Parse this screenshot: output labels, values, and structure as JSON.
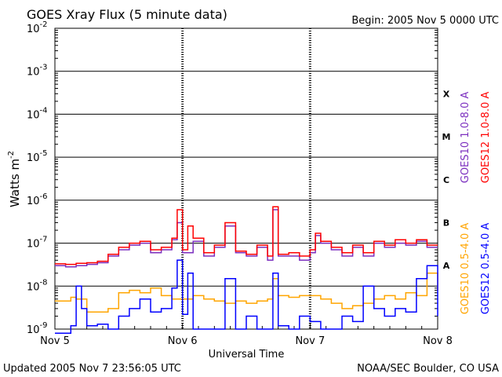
{
  "chart_data": {
    "type": "line",
    "title": "GOES Xray Flux (5 minute data)",
    "begin_label": "Begin:  2005 Nov 5 0000 UTC",
    "xlabel": "Universal Time",
    "ylabel": "Watts m",
    "ylabel_superscript": "-2",
    "yscale": "log",
    "ylim": [
      1e-09,
      0.01
    ],
    "xlim": [
      0,
      72
    ],
    "x_unit": "hours since 2005 Nov 5 0000 UTC",
    "y_ticks": [
      {
        "base": "10",
        "exp": "-2",
        "value": 0.01
      },
      {
        "base": "10",
        "exp": "-3",
        "value": 0.001
      },
      {
        "base": "10",
        "exp": "-4",
        "value": 0.0001
      },
      {
        "base": "10",
        "exp": "-5",
        "value": 1e-05
      },
      {
        "base": "10",
        "exp": "-6",
        "value": 1e-06
      },
      {
        "base": "10",
        "exp": "-7",
        "value": 1e-07
      },
      {
        "base": "10",
        "exp": "-8",
        "value": 1e-08
      },
      {
        "base": "10",
        "exp": "-9",
        "value": 1e-09
      }
    ],
    "x_ticks": [
      {
        "label": "Nov 5",
        "hour": 0
      },
      {
        "label": "Nov 6",
        "hour": 24
      },
      {
        "label": "Nov 7",
        "hour": 48
      },
      {
        "label": "Nov 8",
        "hour": 72
      }
    ],
    "flare_classes": [
      {
        "label": "X",
        "value": 0.0003
      },
      {
        "label": "M",
        "value": 3e-05
      },
      {
        "label": "C",
        "value": 3e-06
      },
      {
        "label": "B",
        "value": 3e-07
      },
      {
        "label": "A",
        "value": 3e-08
      }
    ],
    "grid": true,
    "legend_position": "right",
    "series": [
      {
        "name": "GOES10 1.0-8.0 A",
        "color": "#7b2fbf",
        "points": [
          [
            0,
            3e-08
          ],
          [
            2,
            2.8e-08
          ],
          [
            4,
            3e-08
          ],
          [
            6,
            3.2e-08
          ],
          [
            8,
            3.5e-08
          ],
          [
            10,
            5e-08
          ],
          [
            12,
            7e-08
          ],
          [
            14,
            9e-08
          ],
          [
            16,
            1e-07
          ],
          [
            18,
            6e-08
          ],
          [
            20,
            7e-08
          ],
          [
            22,
            1.2e-07
          ],
          [
            23,
            3e-07
          ],
          [
            24,
            6e-08
          ],
          [
            26,
            1.1e-07
          ],
          [
            28,
            5e-08
          ],
          [
            30,
            8e-08
          ],
          [
            32,
            2.5e-07
          ],
          [
            34,
            6e-08
          ],
          [
            36,
            5e-08
          ],
          [
            38,
            8e-08
          ],
          [
            40,
            4e-08
          ],
          [
            41,
            6e-07
          ],
          [
            42,
            5e-08
          ],
          [
            44,
            5e-08
          ],
          [
            46,
            4e-08
          ],
          [
            48,
            6e-08
          ],
          [
            49,
            1.5e-07
          ],
          [
            50,
            1e-07
          ],
          [
            52,
            7e-08
          ],
          [
            54,
            5e-08
          ],
          [
            56,
            8e-08
          ],
          [
            58,
            5e-08
          ],
          [
            60,
            1e-07
          ],
          [
            62,
            8e-08
          ],
          [
            64,
            1e-07
          ],
          [
            66,
            9e-08
          ],
          [
            68,
            1.1e-07
          ],
          [
            70,
            8e-08
          ],
          [
            72,
            8e-08
          ]
        ]
      },
      {
        "name": "GOES12 1.0-8.0 A",
        "color": "#ff0000",
        "points": [
          [
            0,
            3.3e-08
          ],
          [
            2,
            3.2e-08
          ],
          [
            4,
            3.4e-08
          ],
          [
            6,
            3.5e-08
          ],
          [
            8,
            3.8e-08
          ],
          [
            10,
            5.5e-08
          ],
          [
            12,
            8e-08
          ],
          [
            14,
            1e-07
          ],
          [
            16,
            1.1e-07
          ],
          [
            18,
            7e-08
          ],
          [
            20,
            8e-08
          ],
          [
            22,
            1.3e-07
          ],
          [
            23,
            6e-07
          ],
          [
            24,
            7e-08
          ],
          [
            25,
            2.5e-07
          ],
          [
            26,
            1.3e-07
          ],
          [
            28,
            6e-08
          ],
          [
            30,
            9e-08
          ],
          [
            32,
            3e-07
          ],
          [
            34,
            6.5e-08
          ],
          [
            36,
            5.5e-08
          ],
          [
            38,
            9e-08
          ],
          [
            40,
            5e-08
          ],
          [
            41,
            7e-07
          ],
          [
            42,
            5.5e-08
          ],
          [
            44,
            6e-08
          ],
          [
            46,
            5e-08
          ],
          [
            48,
            7e-08
          ],
          [
            49,
            1.7e-07
          ],
          [
            50,
            1.1e-07
          ],
          [
            52,
            8e-08
          ],
          [
            54,
            6e-08
          ],
          [
            56,
            9e-08
          ],
          [
            58,
            6e-08
          ],
          [
            60,
            1.1e-07
          ],
          [
            62,
            9e-08
          ],
          [
            64,
            1.2e-07
          ],
          [
            66,
            1e-07
          ],
          [
            68,
            1.2e-07
          ],
          [
            70,
            9e-08
          ],
          [
            72,
            9e-08
          ]
        ]
      },
      {
        "name": "GOES10 0.5-4.0 A",
        "color": "#ffa500",
        "points": [
          [
            0,
            4.5e-09
          ],
          [
            2,
            4.5e-09
          ],
          [
            3,
            5.5e-09
          ],
          [
            4,
            5e-09
          ],
          [
            6,
            2.5e-09
          ],
          [
            8,
            2.5e-09
          ],
          [
            10,
            3e-09
          ],
          [
            12,
            7e-09
          ],
          [
            14,
            8e-09
          ],
          [
            16,
            7e-09
          ],
          [
            18,
            9e-09
          ],
          [
            20,
            6e-09
          ],
          [
            22,
            5e-09
          ],
          [
            24,
            5e-09
          ],
          [
            26,
            6e-09
          ],
          [
            28,
            5e-09
          ],
          [
            30,
            4.5e-09
          ],
          [
            32,
            4e-09
          ],
          [
            34,
            4.5e-09
          ],
          [
            36,
            4e-09
          ],
          [
            38,
            4.5e-09
          ],
          [
            40,
            5e-09
          ],
          [
            41,
            1.5e-08
          ],
          [
            42,
            6e-09
          ],
          [
            44,
            5.5e-09
          ],
          [
            46,
            6e-09
          ],
          [
            48,
            6e-09
          ],
          [
            50,
            5e-09
          ],
          [
            52,
            4e-09
          ],
          [
            54,
            3e-09
          ],
          [
            56,
            3.5e-09
          ],
          [
            58,
            4e-09
          ],
          [
            60,
            5e-09
          ],
          [
            62,
            6e-09
          ],
          [
            64,
            5e-09
          ],
          [
            66,
            7e-09
          ],
          [
            68,
            6e-09
          ],
          [
            70,
            2e-08
          ],
          [
            72,
            8e-09
          ]
        ]
      },
      {
        "name": "GOES12 0.5-4.0 A",
        "color": "#0000ff",
        "points": [
          [
            0,
            8e-10
          ],
          [
            2,
            8e-10
          ],
          [
            3,
            1.2e-09
          ],
          [
            4,
            1e-08
          ],
          [
            5,
            3e-09
          ],
          [
            6,
            1.2e-09
          ],
          [
            8,
            1.3e-09
          ],
          [
            10,
            1e-09
          ],
          [
            12,
            2e-09
          ],
          [
            14,
            3e-09
          ],
          [
            16,
            5e-09
          ],
          [
            18,
            2.5e-09
          ],
          [
            20,
            3e-09
          ],
          [
            22,
            9e-09
          ],
          [
            23,
            4e-08
          ],
          [
            24,
            2.2e-09
          ],
          [
            25,
            2e-08
          ],
          [
            26,
            1e-09
          ],
          [
            28,
            1e-09
          ],
          [
            30,
            1e-09
          ],
          [
            32,
            1.5e-08
          ],
          [
            34,
            1e-09
          ],
          [
            36,
            2e-09
          ],
          [
            38,
            1e-09
          ],
          [
            40,
            1e-09
          ],
          [
            41,
            2e-08
          ],
          [
            42,
            1.2e-09
          ],
          [
            44,
            1e-09
          ],
          [
            46,
            2e-09
          ],
          [
            48,
            1.5e-09
          ],
          [
            50,
            1e-09
          ],
          [
            52,
            1e-09
          ],
          [
            54,
            2e-09
          ],
          [
            56,
            1.5e-09
          ],
          [
            58,
            1e-08
          ],
          [
            60,
            3e-09
          ],
          [
            62,
            2e-09
          ],
          [
            64,
            3e-09
          ],
          [
            66,
            2.5e-09
          ],
          [
            68,
            1.5e-08
          ],
          [
            70,
            3e-08
          ],
          [
            72,
            2e-09
          ]
        ]
      }
    ]
  },
  "footer": {
    "updated": "Updated 2005 Nov  7 23:56:05 UTC",
    "credit": "NOAA/SEC Boulder, CO USA"
  }
}
